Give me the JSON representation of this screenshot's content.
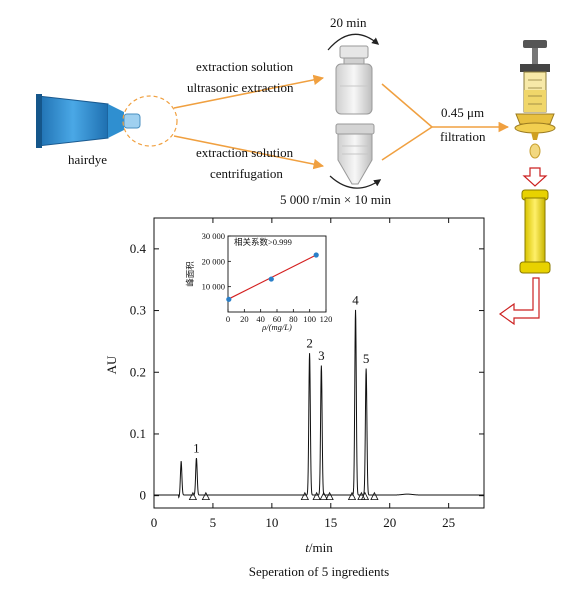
{
  "workflow": {
    "sample_label": "hairdye",
    "top_path": {
      "line1": "extraction solution",
      "line2": "ultrasonic extraction",
      "time": "20 min"
    },
    "bottom_path": {
      "line1": "extraction solution",
      "line2": "centrifugation",
      "condition": "5 000 r/min × 10 min"
    },
    "filter": {
      "size": "0.45 μm",
      "label": "filtration"
    }
  },
  "colors": {
    "arrow_orange": "#f0a040",
    "red_arrow": "#cc2020",
    "column_yellow": "#f2df00",
    "tube_blue": "#2f8fd0",
    "fit_line": "#d42020",
    "point_blue": "#2a7fc8"
  },
  "chart_data": [
    {
      "type": "line",
      "title": "Seperation of 5 ingredients",
      "xlabel": "t/min",
      "ylabel": "AU",
      "xlim": [
        0,
        28
      ],
      "ylim": [
        -0.02,
        0.45
      ],
      "xticks": [
        0,
        5,
        10,
        15,
        20,
        25
      ],
      "yticks": [
        0,
        0.1,
        0.2,
        0.3,
        0.4
      ],
      "xtick_labels": [
        "0",
        "5",
        "10",
        "15",
        "20",
        "25"
      ],
      "ytick_labels": [
        "0",
        "0.1",
        "0.2",
        "0.3",
        "0.4"
      ],
      "peaks": [
        {
          "label": "1",
          "t": 3.6,
          "height": 0.06
        },
        {
          "label": "2",
          "t": 13.2,
          "height": 0.23
        },
        {
          "label": "3",
          "t": 14.2,
          "height": 0.21
        },
        {
          "label": "4",
          "t": 17.1,
          "height": 0.3
        },
        {
          "label": "5",
          "t": 18.0,
          "height": 0.205
        }
      ],
      "extra_peak": {
        "t": 2.3,
        "height": 0.055
      },
      "markers_t": [
        3.3,
        4.4,
        12.8,
        13.8,
        14.4,
        14.9,
        16.8,
        17.6,
        17.9,
        18.7
      ],
      "grid": false
    },
    {
      "type": "scatter",
      "annotation": "相关系数>0.999",
      "xlabel": "ρ/(mg/L)",
      "ylabel": "峰面积",
      "xlim": [
        0,
        120
      ],
      "ylim": [
        0,
        30000
      ],
      "xticks": [
        0,
        20,
        40,
        60,
        80,
        100,
        120
      ],
      "yticks": [
        10000,
        20000,
        30000
      ],
      "xtick_labels": [
        "0",
        "20",
        "40",
        "60",
        "80",
        "100",
        "120"
      ],
      "ytick_labels": [
        "10 000",
        "20 000",
        "30 000"
      ],
      "points": [
        [
          1,
          5000
        ],
        [
          53,
          13000
        ],
        [
          108,
          22500
        ]
      ],
      "fit_line": [
        [
          0,
          5000
        ],
        [
          108,
          22500
        ]
      ]
    }
  ]
}
